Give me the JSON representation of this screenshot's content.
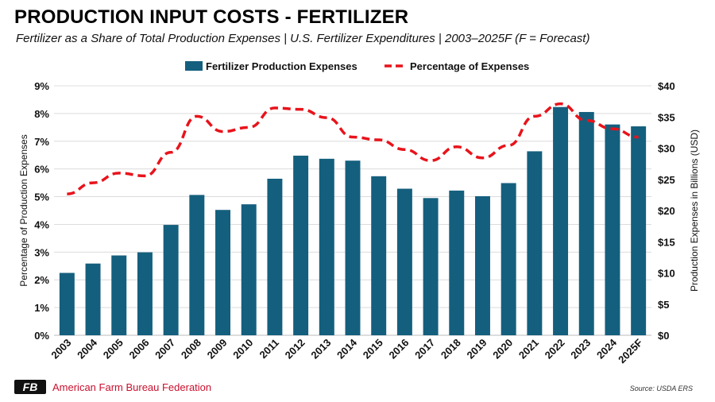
{
  "header": {
    "title": "PRODUCTION INPUT COSTS - FERTILIZER",
    "subtitle": "Fertilizer as a Share of Total Production Expenses | U.S. Fertilizer Expenditures | 2003–2025F (F = Forecast)"
  },
  "footer": {
    "organization": "American Farm Bureau Federation",
    "logo_text": "FB",
    "source": "Source: USDA ERS"
  },
  "colors": {
    "bar": "#145f7e",
    "line": "#e8131b",
    "grid": "#dcdcdc",
    "accent": "#c8102e"
  },
  "chart_data": {
    "type": "bar",
    "categories": [
      "2003",
      "2004",
      "2005",
      "2006",
      "2007",
      "2008",
      "2009",
      "2010",
      "2011",
      "2012",
      "2013",
      "2014",
      "2015",
      "2016",
      "2017",
      "2018",
      "2019",
      "2020",
      "2021",
      "2022",
      "2023",
      "2024",
      "2025F"
    ],
    "series": [
      {
        "name": "Fertilizer Production Expenses",
        "type": "bar",
        "axis": "right",
        "values": [
          10.0,
          11.5,
          12.8,
          13.3,
          17.7,
          22.5,
          20.1,
          21.0,
          25.1,
          28.8,
          28.3,
          28.0,
          25.5,
          23.5,
          22.0,
          23.2,
          22.3,
          24.4,
          29.5,
          36.6,
          35.8,
          33.8,
          33.5
        ]
      },
      {
        "name": "Percentage of Expenses",
        "type": "line",
        "style": "dashed",
        "axis": "left",
        "values": [
          5.1,
          5.5,
          5.85,
          5.75,
          6.6,
          7.9,
          7.35,
          7.5,
          8.2,
          8.15,
          7.85,
          7.15,
          7.05,
          6.7,
          6.3,
          6.8,
          6.4,
          6.85,
          7.9,
          8.35,
          7.75,
          7.45,
          7.15
        ]
      }
    ],
    "y_left": {
      "label": "Percentage of Production Expenses",
      "ylim": [
        0,
        9
      ],
      "ticks": [
        "0%",
        "1%",
        "2%",
        "3%",
        "4%",
        "5%",
        "6%",
        "7%",
        "8%",
        "9%"
      ]
    },
    "y_right": {
      "label": "Production Expenses in Billions (USD)",
      "ylim": [
        0,
        40
      ],
      "ticks": [
        "$0",
        "$5",
        "$10",
        "$15",
        "$20",
        "$25",
        "$30",
        "$35",
        "$40"
      ]
    },
    "legend": {
      "position": "top-center",
      "entries": [
        "Fertilizer Production Expenses",
        "Percentage of Expenses"
      ]
    },
    "grid": true
  }
}
